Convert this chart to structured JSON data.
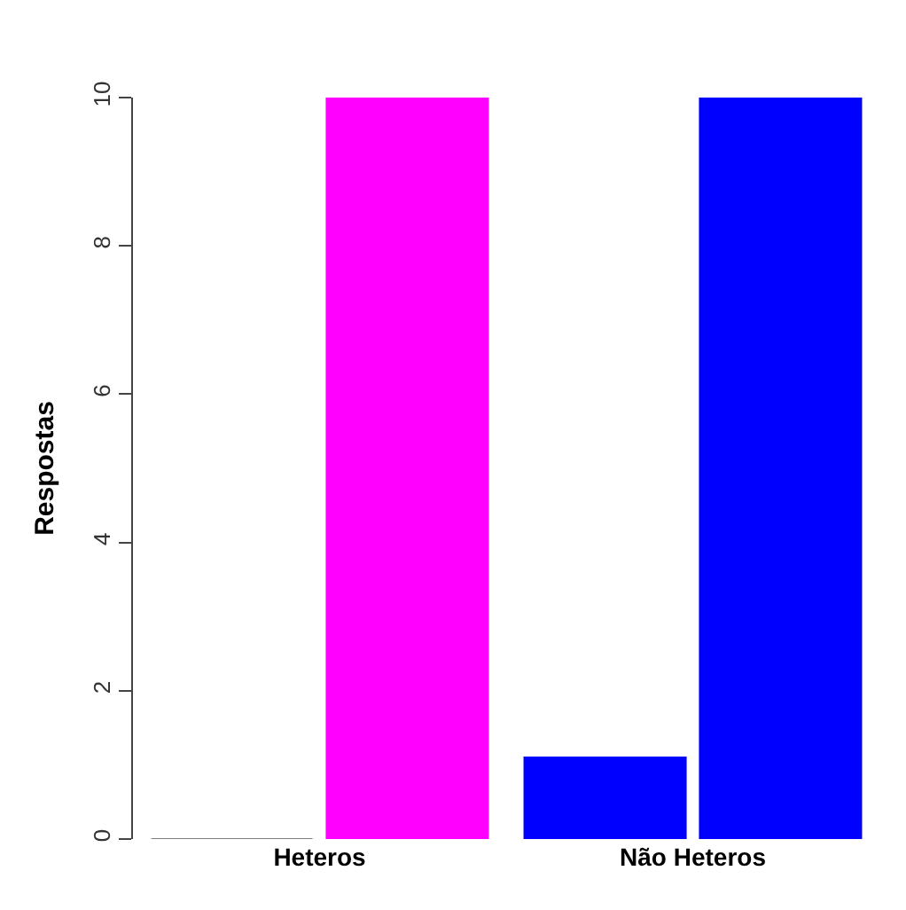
{
  "chart_data": {
    "type": "bar",
    "ylabel": "Respostas",
    "categories": [
      "Heteros",
      "Não Heteros"
    ],
    "series": [
      {
        "colors": [
          "#808080",
          "#0000ff"
        ],
        "values": [
          0,
          1.1
        ]
      },
      {
        "colors": [
          "#ff00ff",
          "#0000ff"
        ],
        "values": [
          10,
          10
        ]
      }
    ],
    "ylim": [
      0,
      10
    ],
    "yticks": [
      0,
      2,
      4,
      6,
      8,
      10
    ]
  }
}
